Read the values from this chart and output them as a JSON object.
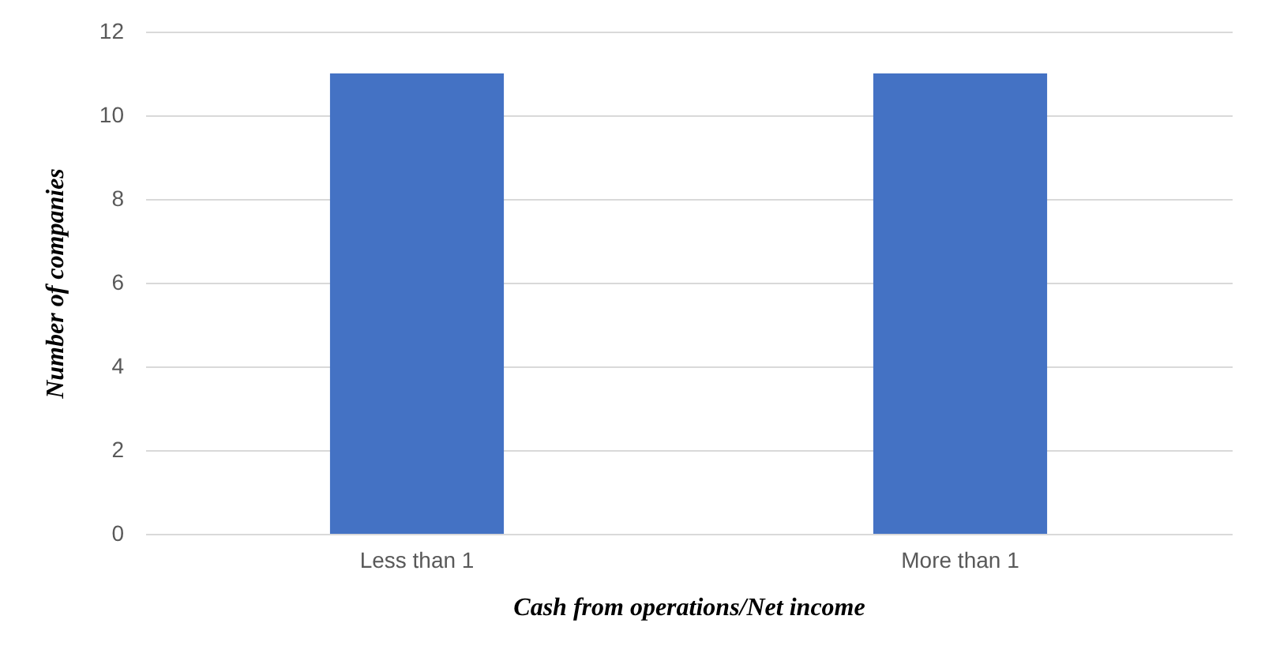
{
  "chart_data": {
    "type": "bar",
    "xlabel": "Cash from operations/Net income",
    "ylabel": "Number of companies",
    "categories": [
      "Less than 1",
      "More than 1"
    ],
    "values": [
      11,
      11
    ],
    "color": "#4472c4",
    "ylim": [
      0,
      12
    ],
    "yticks": [
      0,
      2,
      4,
      6,
      8,
      10,
      12
    ],
    "grid": "y"
  }
}
